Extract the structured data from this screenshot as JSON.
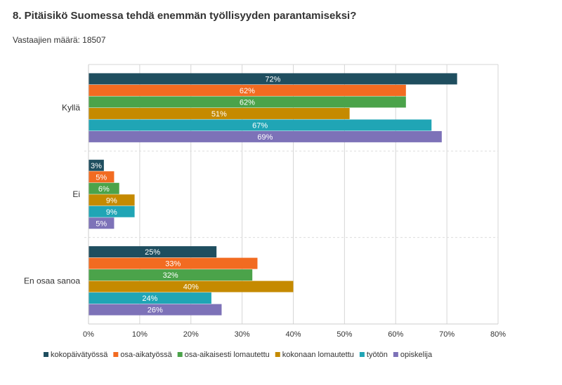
{
  "page": {
    "title": "8. Pitäisikö Suomessa tehdä enemmän työllisyyden parantamiseksi?",
    "respondents": "Vastaajien määrä: 18507"
  },
  "chart_data": {
    "type": "bar",
    "orientation": "horizontal",
    "categories": [
      "Kyllä",
      "Ei",
      "En osaa sanoa"
    ],
    "series": [
      {
        "name": "kokopäivätyössä",
        "color": "#1f4e5f",
        "values": [
          72,
          3,
          25
        ]
      },
      {
        "name": "osa-aikatyössä",
        "color": "#f26b21",
        "values": [
          62,
          5,
          33
        ]
      },
      {
        "name": "osa-aikaisesti lomautettu",
        "color": "#4ba34a",
        "values": [
          62,
          6,
          32
        ]
      },
      {
        "name": "kokonaan lomautettu",
        "color": "#c58a00",
        "values": [
          51,
          9,
          40
        ]
      },
      {
        "name": "työtön",
        "color": "#20a5b5",
        "values": [
          67,
          9,
          24
        ]
      },
      {
        "name": "opiskelija",
        "color": "#7d72b8",
        "values": [
          69,
          5,
          26
        ]
      }
    ],
    "value_suffix": "%",
    "xlim": [
      0,
      80
    ],
    "xticks": [
      0,
      10,
      20,
      30,
      40,
      50,
      60,
      70,
      80
    ],
    "xtick_labels": [
      "0%",
      "10%",
      "20%",
      "30%",
      "40%",
      "50%",
      "60%",
      "70%",
      "80%"
    ],
    "grid": true,
    "legend_position": "bottom"
  }
}
